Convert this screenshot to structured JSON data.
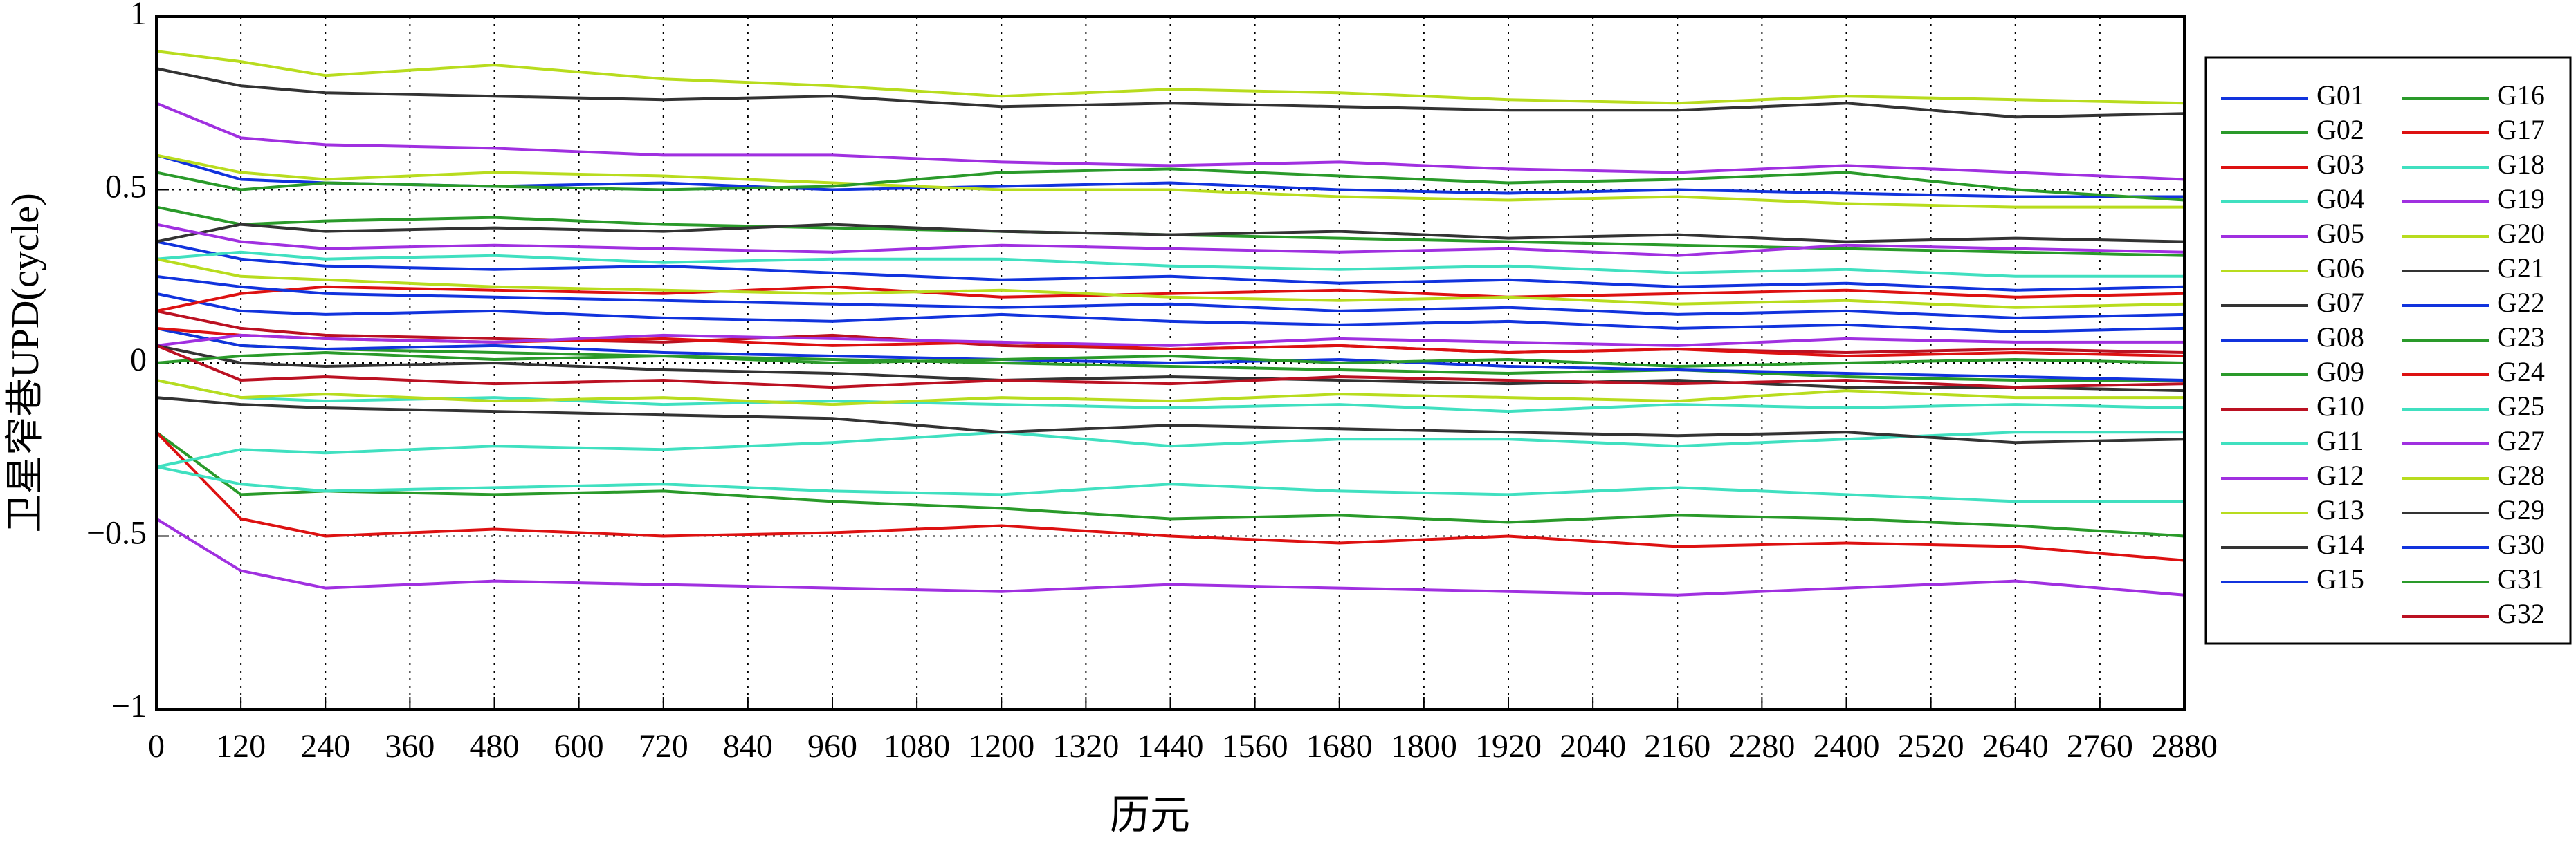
{
  "chart_data": {
    "type": "line",
    "ylabel": "卫星窄巷UPD(cycle)",
    "xlabel": "历元",
    "x": [
      0,
      120,
      240,
      480,
      720,
      960,
      1200,
      1440,
      1680,
      1920,
      2160,
      2400,
      2640,
      2880
    ],
    "xlim": [
      0,
      2880
    ],
    "xticks": [
      0,
      120,
      240,
      360,
      480,
      600,
      720,
      840,
      960,
      1080,
      1200,
      1320,
      1440,
      1560,
      1680,
      1800,
      1920,
      2040,
      2160,
      2280,
      2400,
      2520,
      2640,
      2760,
      2880
    ],
    "ylim": [
      -1,
      1
    ],
    "yticks": [
      {
        "value": -1,
        "label": "−1"
      },
      {
        "value": -0.5,
        "label": "−0.5"
      },
      0,
      0.5,
      1
    ],
    "grid": true,
    "legend": "right",
    "series": [
      {
        "name": "G01",
        "color": "#1133dd",
        "values": [
          0.6,
          0.53,
          0.52,
          0.51,
          0.52,
          0.5,
          0.51,
          0.52,
          0.5,
          0.49,
          0.5,
          0.49,
          0.48,
          0.48
        ]
      },
      {
        "name": "G02",
        "color": "#2a9a2a",
        "values": [
          -0.2,
          -0.38,
          -0.37,
          -0.38,
          -0.37,
          -0.4,
          -0.42,
          -0.45,
          -0.44,
          -0.46,
          -0.44,
          -0.45,
          -0.47,
          -0.5
        ]
      },
      {
        "name": "G03",
        "color": "#dd1111",
        "values": [
          -0.2,
          -0.45,
          -0.5,
          -0.48,
          -0.5,
          -0.49,
          -0.47,
          -0.5,
          -0.52,
          -0.5,
          -0.53,
          -0.52,
          -0.53,
          -0.57
        ]
      },
      {
        "name": "G04",
        "color": "#40e0c0",
        "values": [
          -0.3,
          -0.25,
          -0.26,
          -0.24,
          -0.25,
          -0.23,
          -0.2,
          -0.24,
          -0.22,
          -0.22,
          -0.24,
          -0.22,
          -0.2,
          -0.2
        ]
      },
      {
        "name": "G05",
        "color": "#a030e0",
        "values": [
          -0.45,
          -0.6,
          -0.65,
          -0.63,
          -0.64,
          -0.65,
          -0.66,
          -0.64,
          -0.65,
          -0.66,
          -0.67,
          -0.65,
          -0.63,
          -0.67
        ]
      },
      {
        "name": "G06",
        "color": "#b8dc1e",
        "values": [
          0.9,
          0.87,
          0.83,
          0.86,
          0.82,
          0.8,
          0.77,
          0.79,
          0.78,
          0.76,
          0.75,
          0.77,
          0.76,
          0.75
        ]
      },
      {
        "name": "G07",
        "color": "#333333",
        "values": [
          0.85,
          0.8,
          0.78,
          0.77,
          0.76,
          0.77,
          0.74,
          0.75,
          0.74,
          0.73,
          0.73,
          0.75,
          0.71,
          0.72
        ]
      },
      {
        "name": "G08",
        "color": "#1133dd",
        "values": [
          0.35,
          0.3,
          0.28,
          0.27,
          0.28,
          0.26,
          0.24,
          0.25,
          0.23,
          0.24,
          0.22,
          0.23,
          0.21,
          0.22
        ]
      },
      {
        "name": "G09",
        "color": "#2a9a2a",
        "values": [
          0.45,
          0.4,
          0.41,
          0.42,
          0.4,
          0.39,
          0.38,
          0.37,
          0.36,
          0.35,
          0.34,
          0.33,
          0.32,
          0.31
        ]
      },
      {
        "name": "G10",
        "color": "#bb1122",
        "values": [
          0.15,
          0.1,
          0.08,
          0.07,
          0.06,
          0.08,
          0.05,
          0.04,
          0.05,
          0.03,
          0.04,
          0.03,
          0.04,
          0.03
        ]
      },
      {
        "name": "G11",
        "color": "#40e0c0",
        "values": [
          -0.3,
          -0.35,
          -0.37,
          -0.36,
          -0.35,
          -0.37,
          -0.38,
          -0.35,
          -0.37,
          -0.38,
          -0.36,
          -0.38,
          -0.4,
          -0.4
        ]
      },
      {
        "name": "G12",
        "color": "#a030e0",
        "values": [
          0.75,
          0.65,
          0.63,
          0.62,
          0.6,
          0.6,
          0.58,
          0.57,
          0.58,
          0.56,
          0.55,
          0.57,
          0.55,
          0.53
        ]
      },
      {
        "name": "G13",
        "color": "#b8dc1e",
        "values": [
          0.6,
          0.55,
          0.53,
          0.55,
          0.54,
          0.52,
          0.5,
          0.5,
          0.48,
          0.47,
          0.48,
          0.46,
          0.45,
          0.45
        ]
      },
      {
        "name": "G14",
        "color": "#333333",
        "values": [
          0.35,
          0.4,
          0.38,
          0.39,
          0.38,
          0.4,
          0.38,
          0.37,
          0.38,
          0.36,
          0.37,
          0.35,
          0.36,
          0.35
        ]
      },
      {
        "name": "G15",
        "color": "#1133dd",
        "values": [
          0.2,
          0.15,
          0.14,
          0.15,
          0.13,
          0.12,
          0.14,
          0.12,
          0.11,
          0.12,
          0.1,
          0.11,
          0.09,
          0.1
        ]
      },
      {
        "name": "G16",
        "color": "#2a9a2a",
        "values": [
          0.1,
          0.05,
          0.04,
          0.03,
          0.02,
          0.01,
          0.0,
          -0.01,
          -0.02,
          -0.03,
          -0.02,
          -0.04,
          -0.05,
          -0.05
        ]
      },
      {
        "name": "G17",
        "color": "#dd1111",
        "values": [
          0.15,
          0.2,
          0.22,
          0.21,
          0.2,
          0.22,
          0.19,
          0.2,
          0.21,
          0.19,
          0.2,
          0.21,
          0.19,
          0.2
        ]
      },
      {
        "name": "G18",
        "color": "#40e0c0",
        "values": [
          0.3,
          0.32,
          0.3,
          0.31,
          0.29,
          0.3,
          0.3,
          0.28,
          0.27,
          0.28,
          0.26,
          0.27,
          0.25,
          0.25
        ]
      },
      {
        "name": "G19",
        "color": "#a030e0",
        "values": [
          0.4,
          0.35,
          0.33,
          0.34,
          0.33,
          0.32,
          0.34,
          0.33,
          0.32,
          0.33,
          0.31,
          0.34,
          0.33,
          0.32
        ]
      },
      {
        "name": "G20",
        "color": "#b8dc1e",
        "values": [
          0.3,
          0.25,
          0.24,
          0.22,
          0.21,
          0.2,
          0.21,
          0.19,
          0.18,
          0.19,
          0.17,
          0.18,
          0.16,
          0.17
        ]
      },
      {
        "name": "G21",
        "color": "#333333",
        "values": [
          -0.1,
          -0.12,
          -0.13,
          -0.14,
          -0.15,
          -0.16,
          -0.2,
          -0.18,
          -0.19,
          -0.2,
          -0.21,
          -0.2,
          -0.23,
          -0.22
        ]
      },
      {
        "name": "G22",
        "color": "#1133dd",
        "values": [
          0.1,
          0.05,
          0.04,
          0.05,
          0.03,
          0.02,
          0.01,
          0.0,
          0.01,
          -0.01,
          -0.02,
          -0.03,
          -0.04,
          -0.05
        ]
      },
      {
        "name": "G23",
        "color": "#2a9a2a",
        "values": [
          0.55,
          0.5,
          0.52,
          0.51,
          0.5,
          0.51,
          0.55,
          0.56,
          0.54,
          0.52,
          0.53,
          0.55,
          0.5,
          0.47
        ]
      },
      {
        "name": "G24",
        "color": "#dd1111",
        "values": [
          0.1,
          0.08,
          0.07,
          0.06,
          0.07,
          0.05,
          0.06,
          0.04,
          0.05,
          0.03,
          0.04,
          0.02,
          0.03,
          0.02
        ]
      },
      {
        "name": "G25",
        "color": "#40e0c0",
        "values": [
          -0.05,
          -0.1,
          -0.11,
          -0.1,
          -0.12,
          -0.11,
          -0.12,
          -0.13,
          -0.12,
          -0.14,
          -0.12,
          -0.13,
          -0.12,
          -0.13
        ]
      },
      {
        "name": "G27",
        "color": "#a030e0",
        "values": [
          0.05,
          0.08,
          0.07,
          0.06,
          0.08,
          0.07,
          0.06,
          0.05,
          0.07,
          0.06,
          0.05,
          0.07,
          0.06,
          0.06
        ]
      },
      {
        "name": "G28",
        "color": "#b8dc1e",
        "values": [
          -0.05,
          -0.1,
          -0.09,
          -0.11,
          -0.1,
          -0.12,
          -0.1,
          -0.11,
          -0.09,
          -0.1,
          -0.11,
          -0.08,
          -0.1,
          -0.1
        ]
      },
      {
        "name": "G29",
        "color": "#333333",
        "values": [
          0.05,
          0.0,
          -0.01,
          0.0,
          -0.02,
          -0.03,
          -0.05,
          -0.04,
          -0.05,
          -0.06,
          -0.05,
          -0.07,
          -0.07,
          -0.08
        ]
      },
      {
        "name": "G30",
        "color": "#1133dd",
        "values": [
          0.25,
          0.22,
          0.2,
          0.19,
          0.18,
          0.17,
          0.16,
          0.17,
          0.15,
          0.16,
          0.14,
          0.15,
          0.13,
          0.14
        ]
      },
      {
        "name": "G31",
        "color": "#2a9a2a",
        "values": [
          0.0,
          0.02,
          0.03,
          0.01,
          0.02,
          0.0,
          0.01,
          0.02,
          0.0,
          0.01,
          -0.01,
          0.0,
          0.01,
          0.0
        ]
      },
      {
        "name": "G32",
        "color": "#bb1122",
        "values": [
          0.05,
          -0.05,
          -0.04,
          -0.06,
          -0.05,
          -0.07,
          -0.05,
          -0.06,
          -0.04,
          -0.05,
          -0.06,
          -0.05,
          -0.07,
          -0.06
        ]
      }
    ]
  }
}
